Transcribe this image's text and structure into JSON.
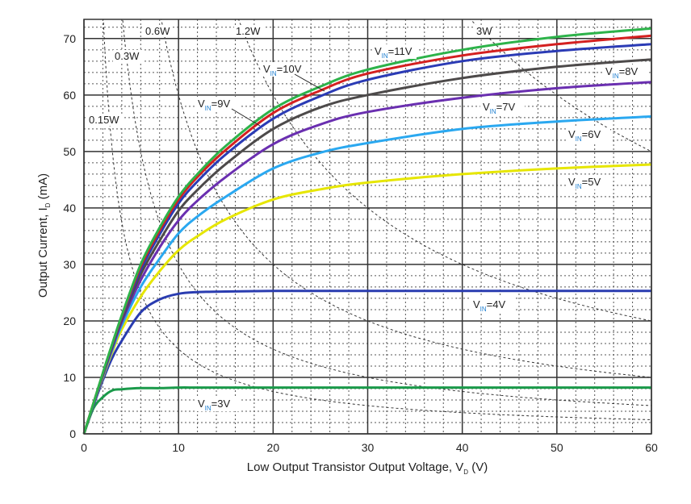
{
  "chart_data": {
    "type": "line",
    "title": "",
    "xlabel": {
      "main": "Low Output Transistor Output Voltage, V",
      "sub": "D",
      "tail": " (V)"
    },
    "ylabel": {
      "main": "Output Current, I",
      "sub": "D",
      "tail": " (mA)"
    },
    "xlim": [
      0,
      60
    ],
    "ylim": [
      0,
      73.4
    ],
    "xticks": [
      0,
      10,
      20,
      30,
      40,
      50,
      60
    ],
    "yticks": [
      0,
      10,
      20,
      30,
      40,
      50,
      60,
      70
    ],
    "grid": {
      "major": true,
      "minor": true,
      "minor_x_step": 2,
      "minor_y_step": 2
    },
    "x": [
      0,
      1,
      2,
      3,
      4,
      6,
      8,
      10,
      12,
      15,
      20,
      25,
      30,
      40,
      50,
      60
    ],
    "series": [
      {
        "main": "V",
        "sub": "IN",
        "value": "=11V",
        "color": "#2db34a",
        "values": [
          0,
          5.4,
          10.8,
          16,
          21,
          30,
          36.5,
          42,
          46,
          51,
          57.5,
          61.5,
          64.5,
          68,
          70.3,
          71.8
        ]
      },
      {
        "main": "V",
        "sub": "IN",
        "value": "=10V",
        "color": "#d42020",
        "values": [
          0,
          5.4,
          10.7,
          15.9,
          20.8,
          29.6,
          36,
          41.5,
          45.5,
          50.3,
          56.8,
          60.8,
          63.8,
          67,
          69,
          70.5
        ]
      },
      {
        "main": "V",
        "sub": "IN",
        "value": "=9V",
        "color": "#2b3bb5",
        "values": [
          0,
          5.3,
          10.6,
          15.7,
          20.5,
          29,
          35.3,
          40.8,
          44.7,
          49.5,
          55.8,
          59.8,
          62.7,
          66,
          67.8,
          69
        ]
      },
      {
        "main": "V",
        "sub": "IN",
        "value": "=8V",
        "color": "#4d4a4a",
        "values": [
          0,
          5.3,
          10.5,
          15.5,
          20.2,
          28.2,
          34.2,
          39.5,
          43.2,
          47.8,
          54,
          57.8,
          60,
          63,
          65,
          66.3
        ]
      },
      {
        "main": "V",
        "sub": "IN",
        "value": "=7V",
        "color": "#6a2fb0",
        "values": [
          0,
          5.2,
          10.3,
          15.2,
          19.8,
          27.2,
          33,
          37.8,
          41.3,
          45.5,
          51.3,
          54.8,
          57,
          59.5,
          61.2,
          62.3
        ]
      },
      {
        "main": "V",
        "sub": "IN",
        "value": "=6V",
        "color": "#2aa8f0",
        "values": [
          0,
          5.2,
          10.2,
          14.9,
          19.2,
          26,
          31,
          35.5,
          38.5,
          42,
          47,
          49.8,
          51.5,
          54,
          55.3,
          56.2
        ]
      },
      {
        "main": "V",
        "sub": "IN",
        "value": "=5V",
        "color": "#e6e600",
        "values": [
          0,
          5.2,
          10,
          14.5,
          18.5,
          24.3,
          28.8,
          32.5,
          35,
          38,
          41.5,
          43.3,
          44.5,
          46,
          47,
          47.7
        ]
      },
      {
        "main": "V",
        "sub": "IN",
        "value": "=4V",
        "color": "#2a3cb0",
        "values": [
          0,
          5,
          9.5,
          13.5,
          16.5,
          21.5,
          23.8,
          24.8,
          25.1,
          25.2,
          25.3,
          25.3,
          25.3,
          25.3,
          25.3,
          25.3
        ]
      },
      {
        "main": "V",
        "sub": "IN",
        "value": "=3V",
        "color": "#1a9a4a",
        "values": [
          0,
          4.5,
          6.5,
          7.7,
          7.9,
          8.1,
          8.1,
          8.2,
          8.2,
          8.2,
          8.2,
          8.2,
          8.2,
          8.2,
          8.2,
          8.2
        ]
      }
    ],
    "power_curves": [
      {
        "label": "0.15W",
        "watts": 0.15
      },
      {
        "label": "0.3W",
        "watts": 0.3
      },
      {
        "label": "0.6W",
        "watts": 0.6
      },
      {
        "label": "1.2W",
        "watts": 1.2
      },
      {
        "label": "3W",
        "watts": 3
      }
    ],
    "colors": {
      "subscript": "#1e7fd0",
      "grid": "#333333",
      "power_curve": "#333333"
    }
  }
}
